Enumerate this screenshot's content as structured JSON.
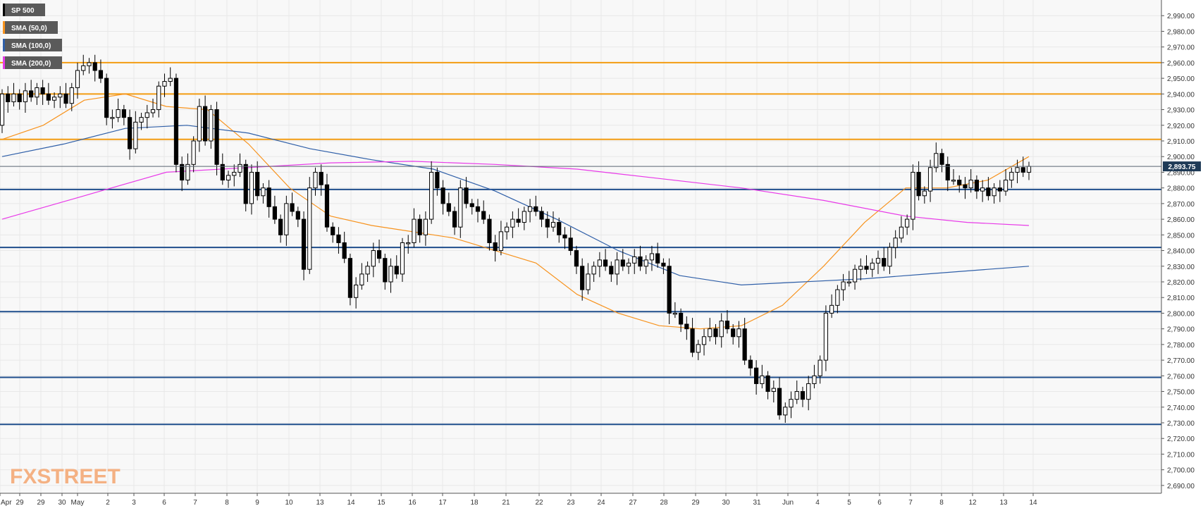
{
  "legend": [
    {
      "label": "SP 500",
      "color": "#000000"
    },
    {
      "label": "SMA (50,0)",
      "color": "#f7931e"
    },
    {
      "label": "SMA (100,0)",
      "color": "#2f5fa8"
    },
    {
      "label": "SMA (200,0)",
      "color": "#e83ae8"
    }
  ],
  "watermark": {
    "part1": "FX",
    "part2": "STREET",
    "color": "#f4b183"
  },
  "last_price": {
    "value": 2893.75,
    "label": "2,893.75",
    "color": "#1f3b57"
  },
  "chart_data": {
    "type": "candlestick",
    "ylim": [
      2685,
      3000
    ],
    "y_ticks": [
      "2,690.00",
      "2,700.00",
      "2,710.00",
      "2,720.00",
      "2,730.00",
      "2,740.00",
      "2,750.00",
      "2,760.00",
      "2,770.00",
      "2,780.00",
      "2,790.00",
      "2,800.00",
      "2,810.00",
      "2,820.00",
      "2,830.00",
      "2,840.00",
      "2,850.00",
      "2,860.00",
      "2,870.00",
      "2,880.00",
      "2,890.00",
      "2,900.00",
      "2,910.00",
      "2,920.00",
      "2,930.00",
      "2,940.00",
      "2,950.00",
      "2,960.00",
      "2,970.00",
      "2,980.00",
      "2,990.00"
    ],
    "x_labels": [
      "Apr",
      "29",
      "29",
      "30",
      "May",
      "2",
      "3",
      "6",
      "7",
      "8",
      "9",
      "10",
      "13",
      "14",
      "15",
      "16",
      "17",
      "18",
      "21",
      "22",
      "23",
      "24",
      "27",
      "28",
      "29",
      "30",
      "31",
      "Jun",
      "4",
      "5",
      "6",
      "7",
      "8",
      "12",
      "13",
      "14"
    ],
    "resistance_levels": [
      2960,
      2940,
      2911
    ],
    "support_levels": [
      2879,
      2842,
      2801,
      2759,
      2729
    ],
    "series": [
      {
        "name": "SP 500",
        "start": 2920,
        "closes": [
          2940,
          2935,
          2940,
          2935,
          2942,
          2938,
          2944,
          2940,
          2936,
          2938,
          2940,
          2934,
          2944,
          2955,
          2958,
          2960,
          2955,
          2950,
          2925,
          2925,
          2930,
          2925,
          2905,
          2922,
          2925,
          2928,
          2930,
          2945,
          2948,
          2950,
          2895,
          2885,
          2895,
          2910,
          2932,
          2910,
          2930,
          2895,
          2885,
          2888,
          2890,
          2895,
          2870,
          2890,
          2875,
          2880,
          2868,
          2860,
          2850,
          2870,
          2865,
          2860,
          2828,
          2880,
          2890,
          2882,
          2855,
          2850,
          2845,
          2835,
          2810,
          2818,
          2825,
          2830,
          2840,
          2835,
          2820,
          2830,
          2825,
          2845,
          2845,
          2860,
          2850,
          2860,
          2890,
          2880,
          2870,
          2865,
          2855,
          2880,
          2870,
          2868,
          2865,
          2860,
          2845,
          2840,
          2852,
          2855,
          2860,
          2858,
          2865,
          2868,
          2865,
          2860,
          2855,
          2858,
          2850,
          2848,
          2840,
          2830,
          2815,
          2825,
          2830,
          2834,
          2830,
          2825,
          2834,
          2830,
          2832,
          2836,
          2830,
          2834,
          2838,
          2832,
          2830,
          2800,
          2800,
          2793,
          2790,
          2775,
          2780,
          2785,
          2790,
          2785,
          2795,
          2790,
          2785,
          2790,
          2770,
          2765,
          2755,
          2760,
          2750,
          2752,
          2735,
          2740,
          2745,
          2750,
          2745,
          2755,
          2760,
          2770,
          2800,
          2805,
          2815,
          2820,
          2820,
          2828,
          2830,
          2828,
          2832,
          2835,
          2830,
          2842,
          2848,
          2855,
          2860,
          2890,
          2875,
          2878,
          2893,
          2902,
          2895,
          2885,
          2885,
          2882,
          2880,
          2885,
          2878,
          2880,
          2875,
          2880,
          2878,
          2885,
          2890,
          2893,
          2890,
          2893.75
        ]
      },
      {
        "name": "SMA (50,0)",
        "x": [
          0,
          0.04,
          0.08,
          0.12,
          0.16,
          0.2,
          0.24,
          0.28,
          0.32,
          0.36,
          0.4,
          0.44,
          0.48,
          0.52,
          0.56,
          0.6,
          0.64,
          0.68,
          0.72,
          0.76,
          0.8,
          0.84,
          0.88,
          0.92,
          0.96,
          1
        ],
        "values": [
          2911,
          2920,
          2936,
          2940,
          2932,
          2930,
          2908,
          2880,
          2862,
          2856,
          2852,
          2848,
          2840,
          2832,
          2812,
          2800,
          2792,
          2790,
          2792,
          2805,
          2830,
          2858,
          2880,
          2880,
          2885,
          2900
        ]
      },
      {
        "name": "SMA (100,0)",
        "x": [
          0,
          0.06,
          0.12,
          0.18,
          0.24,
          0.3,
          0.36,
          0.42,
          0.48,
          0.54,
          0.6,
          0.66,
          0.72,
          0.78,
          0.84,
          0.9,
          0.96,
          1
        ],
        "values": [
          2900,
          2908,
          2918,
          2920,
          2915,
          2905,
          2898,
          2892,
          2878,
          2860,
          2840,
          2824,
          2818,
          2820,
          2822,
          2825,
          2828,
          2830
        ]
      },
      {
        "name": "SMA (200,0)",
        "x": [
          0,
          0.08,
          0.16,
          0.24,
          0.32,
          0.4,
          0.48,
          0.56,
          0.64,
          0.72,
          0.8,
          0.88,
          0.94,
          1
        ],
        "values": [
          2860,
          2875,
          2890,
          2893,
          2896,
          2897,
          2895,
          2892,
          2886,
          2880,
          2872,
          2862,
          2858,
          2856
        ]
      }
    ]
  }
}
